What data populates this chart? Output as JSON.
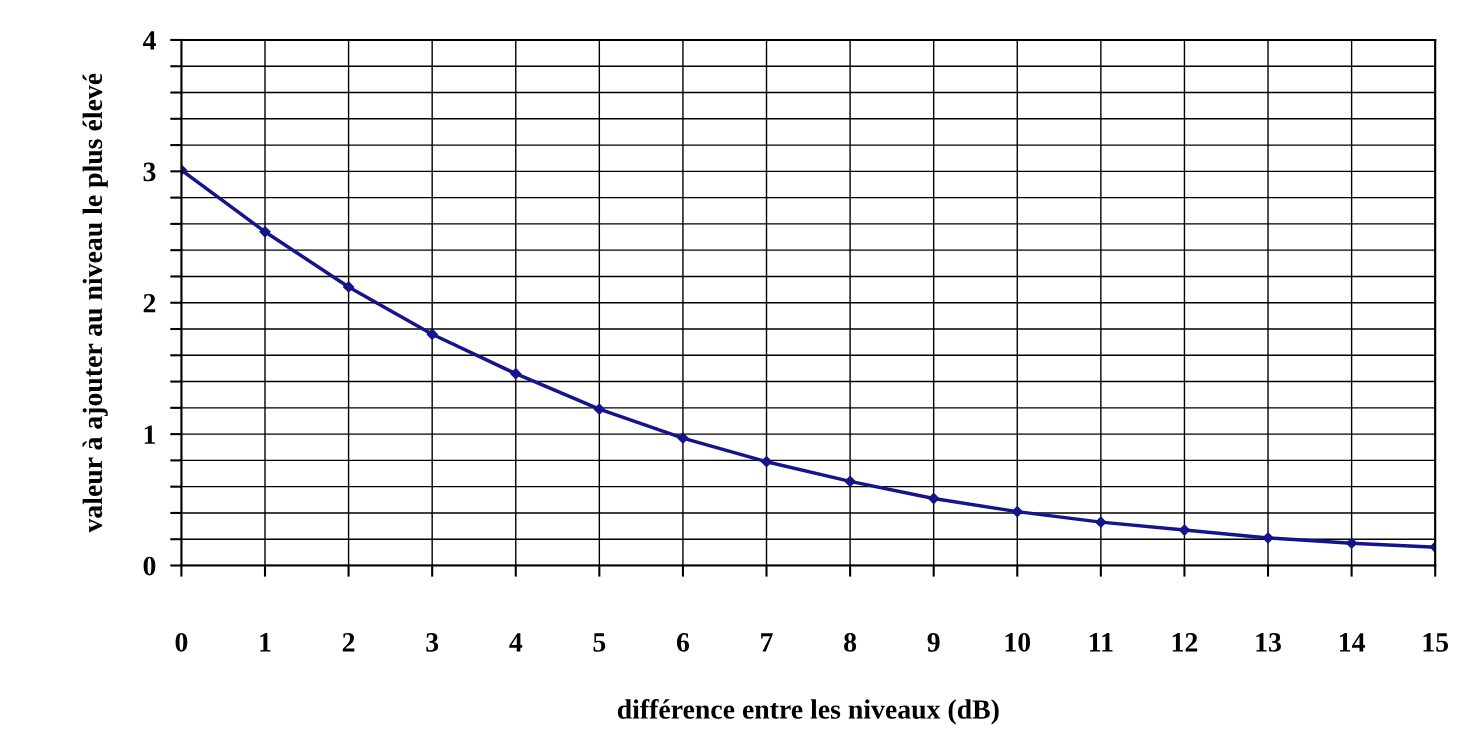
{
  "chart_data": {
    "type": "line",
    "xlabel": "différence entre les niveaux (dB)",
    "ylabel": "valeur à ajouter au niveau le plus élevé",
    "x": [
      0,
      1,
      2,
      3,
      4,
      5,
      6,
      7,
      8,
      9,
      10,
      11,
      12,
      13,
      14,
      15
    ],
    "series": [
      {
        "color": "#14148c",
        "values": [
          3.01,
          2.54,
          2.12,
          1.76,
          1.46,
          1.19,
          0.97,
          0.79,
          0.64,
          0.51,
          0.41,
          0.33,
          0.27,
          0.21,
          0.17,
          0.14
        ]
      }
    ],
    "xlim": [
      0,
      15
    ],
    "xticks": [
      0,
      1,
      2,
      3,
      4,
      5,
      6,
      7,
      8,
      9,
      10,
      11,
      12,
      13,
      14,
      15
    ],
    "ylim": [
      0,
      4
    ],
    "yticks": [
      0,
      {
        "value": 0.2,
        "label": null
      },
      {
        "value": 0.4,
        "label": null
      },
      {
        "value": 0.6,
        "label": null
      },
      {
        "value": 0.8,
        "label": null
      },
      1,
      {
        "value": 1.2,
        "label": null
      },
      {
        "value": 1.4,
        "label": null
      },
      {
        "value": 1.6,
        "label": null
      },
      {
        "value": 1.8,
        "label": null
      },
      2,
      {
        "value": 2.2,
        "label": null
      },
      {
        "value": 2.4,
        "label": null
      },
      {
        "value": 2.6,
        "label": null
      },
      {
        "value": 2.8,
        "label": null
      },
      3,
      {
        "value": 3.2,
        "label": null
      },
      {
        "value": 3.4,
        "label": null
      },
      {
        "value": 3.6,
        "label": null
      },
      {
        "value": 3.8,
        "label": null
      },
      4
    ],
    "grid": true,
    "marker": "diamond",
    "line_style": "solid"
  }
}
